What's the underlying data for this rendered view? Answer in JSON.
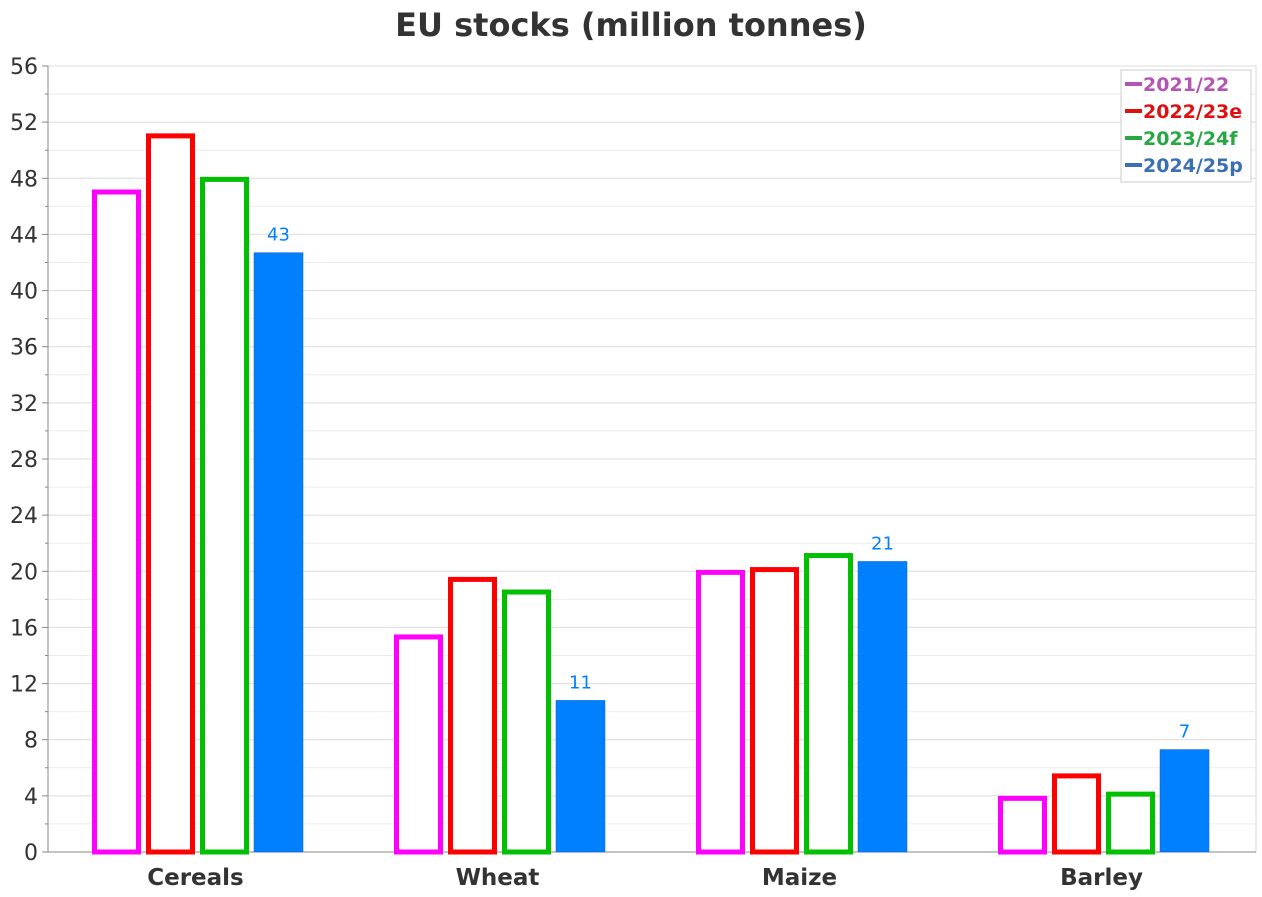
{
  "chart_data": {
    "type": "bar",
    "title": "EU stocks (million tonnes)",
    "xlabel": "",
    "ylabel": "",
    "categories": [
      "Cereals",
      "Wheat",
      "Maize",
      "Barley"
    ],
    "ylim": [
      0,
      56
    ],
    "yticks": [
      0,
      4,
      8,
      12,
      16,
      20,
      24,
      28,
      32,
      36,
      40,
      44,
      48,
      52,
      56
    ],
    "grid": true,
    "legend_position": "top-right",
    "series": [
      {
        "name": "2021/22",
        "values": [
          47.2,
          15.5,
          20.1,
          4.0
        ],
        "color": "#ff00ff",
        "legend_color": "#b455b4",
        "style": "outline"
      },
      {
        "name": "2022/23e",
        "values": [
          51.2,
          19.6,
          20.3,
          5.6
        ],
        "color": "#ff0000",
        "legend_color": "#e01010",
        "style": "outline"
      },
      {
        "name": "2023/24f",
        "values": [
          48.1,
          18.7,
          21.3,
          4.3
        ],
        "color": "#00c000",
        "legend_color": "#28a745",
        "style": "outline"
      },
      {
        "name": "2024/25p",
        "values": [
          42.7,
          10.8,
          20.7,
          7.3
        ],
        "color": "#0080ff",
        "legend_color": "#3a6fb5",
        "style": "filled"
      }
    ],
    "data_labels": {
      "series": "2024/25p",
      "values": [
        "43",
        "11",
        "21",
        "7"
      ]
    }
  }
}
